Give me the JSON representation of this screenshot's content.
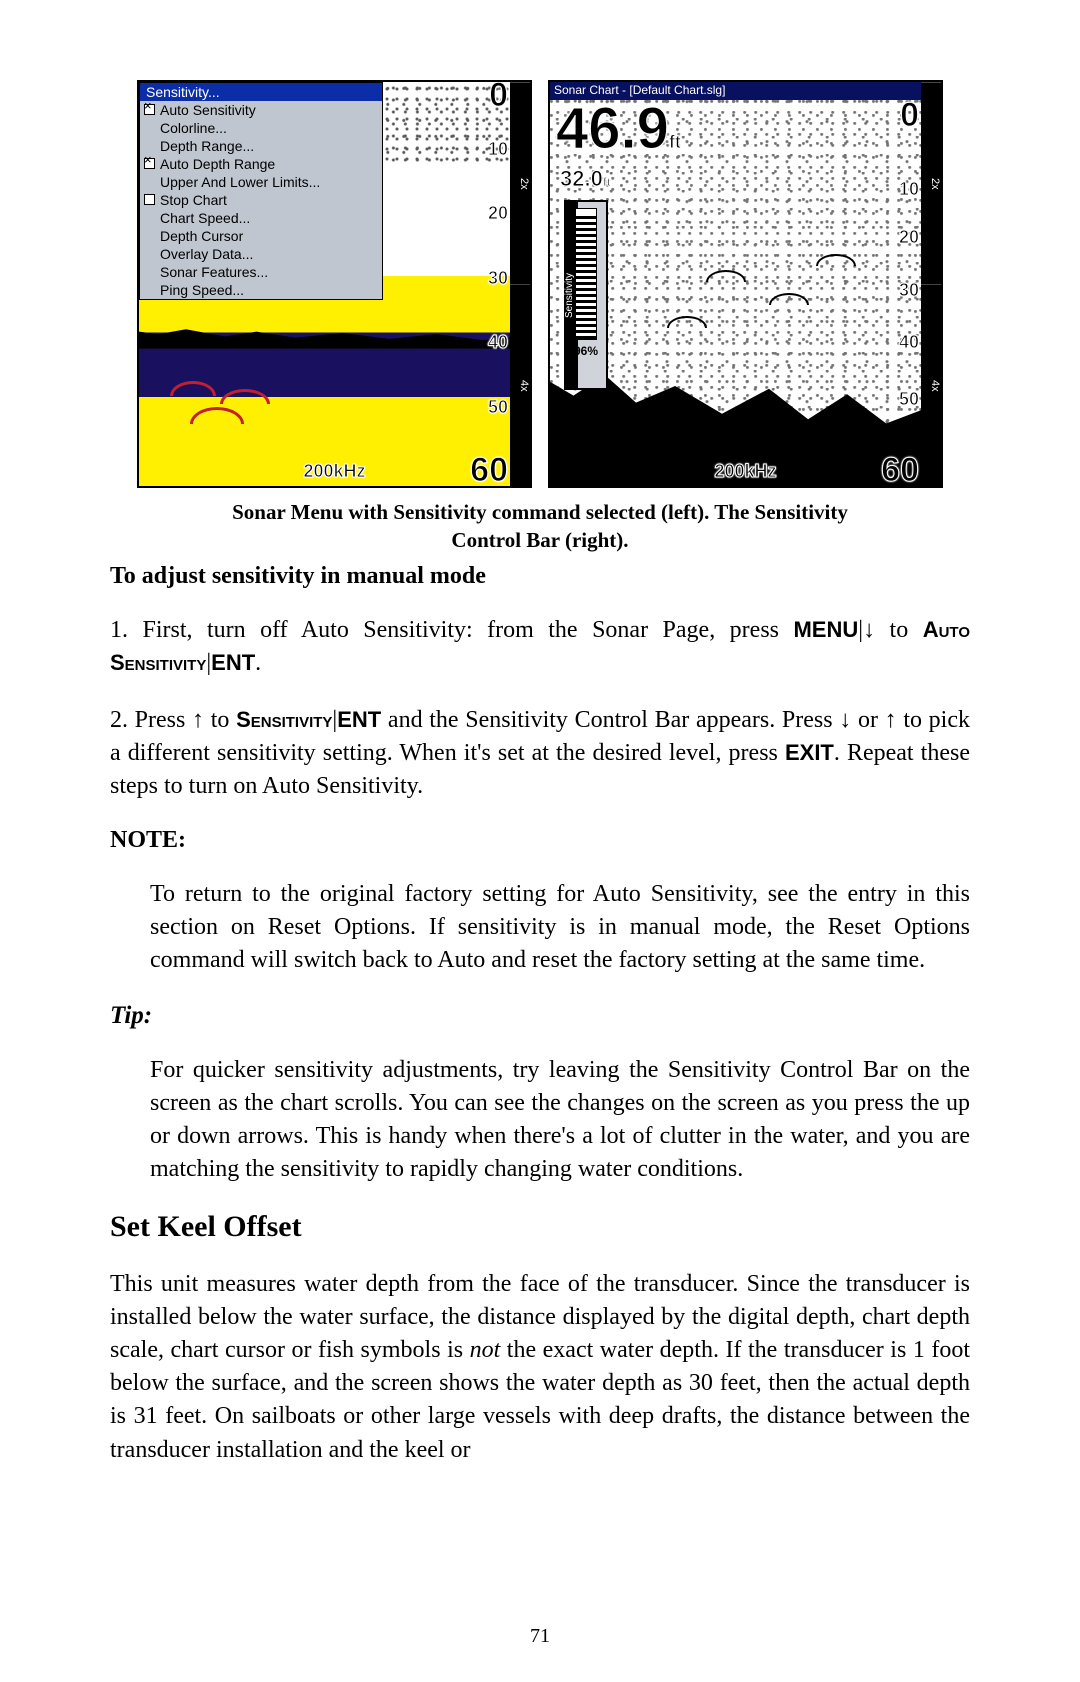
{
  "figure_left": {
    "menu_title": "Sensitivity...",
    "menu_items": [
      {
        "label": "Auto Sensitivity",
        "checkbox": true,
        "checked": true
      },
      {
        "label": "Colorline...",
        "checkbox": false,
        "checked": false
      },
      {
        "label": "Depth Range...",
        "checkbox": false,
        "checked": false
      },
      {
        "label": "Auto Depth Range",
        "checkbox": true,
        "checked": true
      },
      {
        "label": "Upper And Lower Limits...",
        "checkbox": false,
        "checked": false
      },
      {
        "label": "Stop Chart",
        "checkbox": true,
        "checked": false
      },
      {
        "label": "Chart Speed...",
        "checkbox": false,
        "checked": false
      },
      {
        "label": "Depth Cursor",
        "checkbox": false,
        "checked": false
      },
      {
        "label": "Overlay Data...",
        "checkbox": false,
        "checked": false
      },
      {
        "label": "Sonar Features...",
        "checkbox": false,
        "checked": false
      },
      {
        "label": "Ping Speed...",
        "checkbox": false,
        "checked": false
      }
    ],
    "depth_top": "0",
    "depth_ticks": [
      "10",
      "20",
      "30",
      "40",
      "50"
    ],
    "depth_bottom": "60",
    "frequency": "200kHz",
    "zoom_labels": [
      "2x",
      "4x"
    ],
    "colors": {
      "menu_header_bg": "#0b2da8",
      "menu_header_fg": "#ffffff",
      "menu_bg": "#c0c6d0",
      "water_top": "#ffffff",
      "mid_band": "#ffef00",
      "deep_band": "#1a1060",
      "fish_arc": "#c02030"
    }
  },
  "figure_right": {
    "titlebar": "Sonar Chart - [Default Chart.slg]",
    "big_depth_value": "46.9",
    "big_depth_unit": "ft",
    "sub_reading": "32.0",
    "sensitivity_label": "Sensitivity",
    "sensitivity_value": "96%",
    "sensitivity_fill_pct": 96,
    "depth_top": "0",
    "depth_ticks": [
      "10",
      "20",
      "30",
      "40",
      "50"
    ],
    "depth_bottom": "60",
    "frequency": "200kHz",
    "zoom_labels": [
      "2x",
      "4x"
    ],
    "colors": {
      "titlebar_bg": "#081060",
      "titlebar_fg": "#ffffff",
      "sens_box_bg": "#d0d4da",
      "outline": "#000000",
      "bg": "#ffffff"
    }
  },
  "caption_line1": "Sonar Menu with Sensitivity command selected (left). The Sensitivity",
  "caption_line2": "Control Bar (right).",
  "heading_adjust": "To adjust sensitivity in manual mode",
  "step1_a": "1. First, turn off Auto Sensitivity: from the Sonar Page, press ",
  "step1_key_menu": "MENU",
  "step1_b": "|↓ to ",
  "step1_key_auto": "Auto Sensitivity",
  "step1_c": "|",
  "step1_key_ent": "ENT",
  "step1_d": ".",
  "step2_a": "2. Press ↑ to ",
  "step2_key_sens": "Sensitivity",
  "step2_b": "|",
  "step2_key_ent": "ENT",
  "step2_c": " and the Sensitivity Control Bar appears. Press ↓ or ↑ to pick a different sensitivity setting. When it's set at the desired level, press ",
  "step2_key_exit": "EXIT",
  "step2_d": ". Repeat these steps to turn on Auto Sensitivity.",
  "note_label": "NOTE:",
  "note_body": "To return to the original factory setting for Auto Sensitivity, see the entry in this section on Reset Options. If sensitivity is in manual mode, the Reset Options command will switch back to Auto and reset the factory setting at the same time.",
  "tip_label": "Tip:",
  "tip_body": "For quicker sensitivity adjustments, try leaving the Sensitivity Control Bar on the screen as the chart scrolls. You can see the changes on the screen as you press the up or down arrows. This is handy when there's a lot of clutter in the water, and you are matching the sensitivity to rapidly changing water conditions.",
  "section_title": "Set Keel Offset",
  "section_body_a": "This unit measures water depth from the face of the transducer. Since the transducer is installed below the water surface, the distance displayed by the digital depth, chart depth scale, chart cursor or fish symbols is ",
  "section_body_em": "not",
  "section_body_b": " the exact water depth. If the transducer is 1 foot below the surface, and the screen shows the water depth as 30 feet, then the actual depth is 31 feet. On sailboats or other large vessels with deep drafts, the distance between the transducer installation and the keel or",
  "page_number": "71"
}
